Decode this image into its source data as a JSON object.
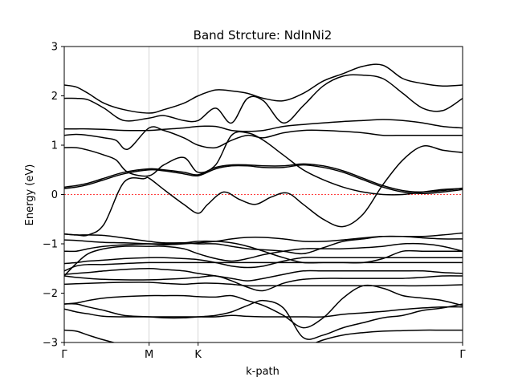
{
  "chart_data": {
    "type": "line",
    "title": "Band Strcture: NdInNi2",
    "xlabel": "k-path",
    "ylabel": "Energy (eV)",
    "ylim": [
      -3,
      3
    ],
    "yticks": [
      3,
      2,
      1,
      0,
      -1,
      -2,
      -3
    ],
    "high_symmetry_points": [
      {
        "label": "Γ",
        "k": 0.0
      },
      {
        "label": "M",
        "k": 0.213
      },
      {
        "label": "K",
        "k": 0.336
      },
      {
        "label": "Γ",
        "k": 1.0
      }
    ],
    "fermi_level": 0,
    "grid": false,
    "series": [
      {
        "x": [
          0,
          0.03,
          0.06,
          0.1,
          0.15,
          0.213,
          0.25,
          0.3,
          0.336,
          0.38,
          0.42,
          0.46,
          0.5,
          0.55,
          0.6,
          0.65,
          0.7,
          0.75,
          0.8,
          0.85,
          0.9,
          0.95,
          1.0
        ],
        "y": [
          -2.75,
          -2.77,
          -2.85,
          -2.95,
          -3.05,
          -3.15,
          -3.2,
          -3.2,
          -3.1,
          -3.05,
          -3.05,
          -3.1,
          -3.15,
          -3.2,
          -3.1,
          -2.95,
          -2.85,
          -2.8,
          -2.77,
          -2.76,
          -2.75,
          -2.75,
          -2.75
        ]
      },
      {
        "x": [
          0,
          0.03,
          0.06,
          0.1,
          0.15,
          0.213,
          0.25,
          0.3,
          0.336,
          0.38,
          0.42,
          0.46,
          0.5,
          0.55,
          0.6,
          0.65,
          0.7,
          0.75,
          0.8,
          0.85,
          0.9,
          0.95,
          1.0
        ],
        "y": [
          -2.32,
          -2.38,
          -2.42,
          -2.47,
          -2.48,
          -2.48,
          -2.48,
          -2.48,
          -2.48,
          -2.48,
          -2.45,
          -2.47,
          -2.48,
          -2.48,
          -2.48,
          -2.48,
          -2.43,
          -2.4,
          -2.37,
          -2.33,
          -2.3,
          -2.28,
          -2.28
        ]
      },
      {
        "x": [
          0,
          0.03,
          0.06,
          0.1,
          0.15,
          0.213,
          0.25,
          0.3,
          0.336,
          0.38,
          0.42,
          0.46,
          0.5,
          0.55,
          0.6,
          0.65,
          0.7,
          0.75,
          0.8,
          0.85,
          0.9,
          0.95,
          1.0
        ],
        "y": [
          -2.22,
          -2.22,
          -2.28,
          -2.35,
          -2.45,
          -2.48,
          -2.5,
          -2.5,
          -2.48,
          -2.45,
          -2.38,
          -2.25,
          -2.15,
          -2.3,
          -2.9,
          -2.85,
          -2.7,
          -2.6,
          -2.5,
          -2.45,
          -2.35,
          -2.3,
          -2.22
        ]
      },
      {
        "x": [
          0,
          0.03,
          0.06,
          0.1,
          0.15,
          0.213,
          0.25,
          0.3,
          0.336,
          0.38,
          0.42,
          0.46,
          0.5,
          0.55,
          0.6,
          0.65,
          0.7,
          0.75,
          0.8,
          0.85,
          0.9,
          0.95,
          1.0
        ],
        "y": [
          -2.22,
          -2.2,
          -2.15,
          -2.1,
          -2.07,
          -2.05,
          -2.05,
          -2.05,
          -2.07,
          -2.08,
          -2.05,
          -2.15,
          -2.25,
          -2.45,
          -2.7,
          -2.5,
          -2.1,
          -1.85,
          -1.9,
          -2.05,
          -2.1,
          -2.15,
          -2.25
        ]
      },
      {
        "x": [
          0,
          0.03,
          0.06,
          0.1,
          0.15,
          0.213,
          0.25,
          0.3,
          0.336,
          0.38,
          0.42,
          0.46,
          0.5,
          0.55,
          0.6,
          0.65,
          0.7,
          0.75,
          0.8,
          0.85,
          0.9,
          0.95,
          1.0
        ],
        "y": [
          -1.82,
          -1.81,
          -1.8,
          -1.79,
          -1.78,
          -1.78,
          -1.8,
          -1.82,
          -1.8,
          -1.8,
          -1.82,
          -1.85,
          -1.85,
          -1.85,
          -1.85,
          -1.85,
          -1.85,
          -1.85,
          -1.85,
          -1.85,
          -1.85,
          -1.84,
          -1.83
        ]
      },
      {
        "x": [
          0,
          0.03,
          0.06,
          0.1,
          0.15,
          0.213,
          0.25,
          0.3,
          0.336,
          0.38,
          0.42,
          0.46,
          0.5,
          0.55,
          0.6,
          0.65,
          0.7,
          0.75,
          0.8,
          0.85,
          0.9,
          0.95,
          1.0
        ],
        "y": [
          -1.65,
          -1.68,
          -1.7,
          -1.72,
          -1.73,
          -1.73,
          -1.72,
          -1.7,
          -1.68,
          -1.65,
          -1.75,
          -1.88,
          -1.95,
          -1.8,
          -1.72,
          -1.7,
          -1.7,
          -1.7,
          -1.7,
          -1.7,
          -1.68,
          -1.65,
          -1.65
        ]
      },
      {
        "x": [
          0,
          0.03,
          0.06,
          0.1,
          0.15,
          0.213,
          0.25,
          0.3,
          0.336,
          0.38,
          0.42,
          0.46,
          0.5,
          0.55,
          0.6,
          0.65,
          0.7,
          0.75,
          0.8,
          0.85,
          0.9,
          0.95,
          1.0
        ],
        "y": [
          -1.62,
          -1.6,
          -1.58,
          -1.55,
          -1.52,
          -1.5,
          -1.52,
          -1.55,
          -1.6,
          -1.65,
          -1.7,
          -1.75,
          -1.7,
          -1.62,
          -1.55,
          -1.55,
          -1.55,
          -1.55,
          -1.55,
          -1.55,
          -1.55,
          -1.58,
          -1.6
        ]
      },
      {
        "x": [
          0,
          0.03,
          0.06,
          0.1,
          0.15,
          0.213,
          0.25,
          0.3,
          0.336,
          0.38,
          0.42,
          0.46,
          0.5,
          0.55,
          0.6,
          0.65,
          0.7,
          0.75,
          0.8,
          0.85,
          0.9,
          0.95,
          1.0
        ],
        "y": [
          -1.55,
          -1.45,
          -1.42,
          -1.42,
          -1.4,
          -1.38,
          -1.38,
          -1.38,
          -1.38,
          -1.38,
          -1.38,
          -1.38,
          -1.38,
          -1.38,
          -1.38,
          -1.38,
          -1.38,
          -1.38,
          -1.38,
          -1.38,
          -1.38,
          -1.38,
          -1.38
        ]
      },
      {
        "x": [
          0,
          0.03,
          0.06,
          0.1,
          0.15,
          0.213,
          0.25,
          0.3,
          0.336,
          0.38,
          0.42,
          0.46,
          0.5,
          0.55,
          0.6,
          0.65,
          0.7,
          0.75,
          0.8,
          0.85,
          0.9,
          0.95,
          1.0
        ],
        "y": [
          -1.4,
          -1.38,
          -1.35,
          -1.33,
          -1.3,
          -1.28,
          -1.28,
          -1.3,
          -1.32,
          -1.38,
          -1.45,
          -1.48,
          -1.45,
          -1.35,
          -1.28,
          -1.28,
          -1.28,
          -1.28,
          -1.28,
          -1.28,
          -1.28,
          -1.28,
          -1.28
        ]
      },
      {
        "x": [
          0,
          0.03,
          0.06,
          0.1,
          0.15,
          0.213,
          0.25,
          0.3,
          0.336,
          0.38,
          0.42,
          0.46,
          0.5,
          0.55,
          0.6,
          0.65,
          0.7,
          0.75,
          0.8,
          0.85,
          0.9,
          0.95,
          1.0
        ],
        "y": [
          -1.65,
          -1.4,
          -1.2,
          -1.1,
          -1.05,
          -1.05,
          -1.05,
          -1.1,
          -1.2,
          -1.3,
          -1.35,
          -1.3,
          -1.22,
          -1.15,
          -1.1,
          -1.1,
          -1.1,
          -1.08,
          -1.05,
          -1.0,
          -1.0,
          -1.05,
          -1.15
        ]
      },
      {
        "x": [
          0,
          0.03,
          0.06,
          0.1,
          0.15,
          0.213,
          0.25,
          0.3,
          0.336,
          0.38,
          0.42,
          0.46,
          0.5,
          0.55,
          0.6,
          0.65,
          0.7,
          0.75,
          0.8,
          0.85,
          0.9,
          0.95,
          1.0
        ],
        "y": [
          -1.15,
          -1.15,
          -1.1,
          -1.05,
          -1.02,
          -1.0,
          -1.0,
          -0.98,
          -0.95,
          -0.95,
          -0.98,
          -1.05,
          -1.15,
          -1.28,
          -1.38,
          -1.38,
          -1.38,
          -1.38,
          -1.3,
          -1.15,
          -1.15,
          -1.15,
          -1.15
        ]
      },
      {
        "x": [
          0,
          0.03,
          0.06,
          0.1,
          0.15,
          0.213,
          0.25,
          0.3,
          0.336,
          0.38,
          0.42,
          0.46,
          0.5,
          0.55,
          0.6,
          0.65,
          0.7,
          0.75,
          0.8,
          0.85,
          0.9,
          0.95,
          1.0
        ],
        "y": [
          -0.92,
          -0.93,
          -0.95,
          -0.97,
          -0.98,
          -1.0,
          -1.02,
          -1.0,
          -0.98,
          -0.95,
          -0.9,
          -0.87,
          -0.87,
          -0.9,
          -0.95,
          -0.95,
          -0.92,
          -0.88,
          -0.85,
          -0.85,
          -0.88,
          -0.9,
          -0.9
        ]
      },
      {
        "x": [
          0,
          0.03,
          0.06,
          0.1,
          0.15,
          0.213,
          0.25,
          0.3,
          0.336,
          0.38,
          0.42,
          0.46,
          0.5,
          0.55,
          0.6,
          0.65,
          0.7,
          0.75,
          0.8,
          0.85,
          0.9,
          0.95,
          1.0
        ],
        "y": [
          -0.8,
          -0.82,
          -0.82,
          -0.83,
          -0.88,
          -0.95,
          -0.98,
          -0.98,
          -1.0,
          -1.0,
          -1.05,
          -1.1,
          -1.12,
          -1.15,
          -1.2,
          -1.08,
          -0.95,
          -0.9,
          -0.85,
          -0.85,
          -0.85,
          -0.82,
          -0.78
        ]
      },
      {
        "x": [
          0,
          0.03,
          0.06,
          0.1,
          0.15,
          0.2,
          0.213,
          0.25,
          0.3,
          0.336,
          0.36,
          0.4,
          0.44,
          0.48,
          0.52,
          0.56,
          0.6,
          0.65,
          0.7,
          0.75,
          0.8,
          0.85,
          0.9,
          0.95,
          1.0
        ],
        "y": [
          -0.8,
          -0.82,
          -0.82,
          -0.6,
          0.25,
          0.32,
          0.33,
          0.1,
          -0.2,
          -0.38,
          -0.2,
          0.05,
          -0.1,
          -0.2,
          -0.05,
          0.03,
          -0.2,
          -0.5,
          -0.65,
          -0.4,
          0.2,
          0.7,
          0.98,
          0.9,
          0.85
        ]
      },
      {
        "x": [
          0,
          0.03,
          0.06,
          0.1,
          0.15,
          0.213,
          0.25,
          0.3,
          0.336,
          0.38,
          0.42,
          0.46,
          0.5,
          0.55,
          0.6,
          0.65,
          0.7,
          0.75,
          0.8,
          0.85,
          0.9,
          0.95,
          1.0
        ],
        "y": [
          0.12,
          0.15,
          0.2,
          0.3,
          0.42,
          0.5,
          0.48,
          0.42,
          0.38,
          0.52,
          0.58,
          0.58,
          0.55,
          0.55,
          0.6,
          0.55,
          0.45,
          0.3,
          0.15,
          0.05,
          0.02,
          0.05,
          0.1
        ]
      },
      {
        "x": [
          0,
          0.03,
          0.06,
          0.1,
          0.15,
          0.213,
          0.25,
          0.3,
          0.336,
          0.38,
          0.42,
          0.46,
          0.5,
          0.55,
          0.6,
          0.65,
          0.7,
          0.75,
          0.8,
          0.85,
          0.9,
          0.95,
          1.0
        ],
        "y": [
          0.15,
          0.18,
          0.23,
          0.33,
          0.45,
          0.52,
          0.5,
          0.45,
          0.4,
          0.55,
          0.6,
          0.6,
          0.58,
          0.58,
          0.62,
          0.58,
          0.48,
          0.33,
          0.18,
          0.08,
          0.05,
          0.08,
          0.13
        ]
      },
      {
        "x": [
          0,
          0.03,
          0.06,
          0.1,
          0.13,
          0.16,
          0.213,
          0.25,
          0.3,
          0.336,
          0.38,
          0.42,
          0.46,
          0.5,
          0.55,
          0.6,
          0.65,
          0.7,
          0.75,
          0.8,
          0.85,
          0.9,
          0.95,
          1.0
        ],
        "y": [
          0.95,
          0.95,
          0.9,
          0.8,
          0.7,
          0.45,
          0.38,
          0.6,
          0.75,
          0.45,
          0.6,
          1.2,
          1.25,
          1.1,
          0.8,
          0.5,
          0.3,
          0.15,
          0.05,
          0.0,
          0.0,
          0.05,
          0.1,
          0.12
        ]
      },
      {
        "x": [
          0,
          0.03,
          0.06,
          0.1,
          0.13,
          0.16,
          0.213,
          0.25,
          0.3,
          0.336,
          0.38,
          0.42,
          0.46,
          0.5,
          0.55,
          0.6,
          0.65,
          0.7,
          0.75,
          0.8,
          0.85,
          0.9,
          0.95,
          1.0
        ],
        "y": [
          1.2,
          1.22,
          1.2,
          1.15,
          1.1,
          0.92,
          1.35,
          1.3,
          1.15,
          1.0,
          0.95,
          1.1,
          1.2,
          1.15,
          1.25,
          1.3,
          1.3,
          1.28,
          1.25,
          1.2,
          1.2,
          1.2,
          1.2,
          1.2
        ]
      },
      {
        "x": [
          0,
          0.03,
          0.06,
          0.1,
          0.15,
          0.213,
          0.25,
          0.3,
          0.336,
          0.38,
          0.42,
          0.46,
          0.5,
          0.55,
          0.6,
          0.65,
          0.7,
          0.75,
          0.8,
          0.85,
          0.9,
          0.95,
          1.0
        ],
        "y": [
          1.33,
          1.33,
          1.33,
          1.32,
          1.3,
          1.3,
          1.32,
          1.35,
          1.38,
          1.38,
          1.3,
          1.28,
          1.3,
          1.38,
          1.42,
          1.45,
          1.48,
          1.5,
          1.52,
          1.5,
          1.45,
          1.38,
          1.35
        ]
      },
      {
        "x": [
          0,
          0.03,
          0.06,
          0.1,
          0.15,
          0.213,
          0.25,
          0.3,
          0.336,
          0.38,
          0.42,
          0.46,
          0.5,
          0.55,
          0.6,
          0.65,
          0.7,
          0.75,
          0.8,
          0.85,
          0.9,
          0.95,
          1.0
        ],
        "y": [
          1.95,
          1.95,
          1.92,
          1.75,
          1.5,
          1.55,
          1.6,
          1.5,
          1.5,
          1.75,
          1.45,
          1.95,
          1.9,
          1.45,
          1.8,
          2.2,
          2.4,
          2.42,
          2.35,
          2.05,
          1.75,
          1.7,
          1.95
        ]
      },
      {
        "x": [
          0,
          0.03,
          0.06,
          0.1,
          0.15,
          0.213,
          0.25,
          0.3,
          0.336,
          0.38,
          0.42,
          0.46,
          0.5,
          0.55,
          0.6,
          0.65,
          0.7,
          0.75,
          0.8,
          0.85,
          0.9,
          0.95,
          1.0
        ],
        "y": [
          2.22,
          2.18,
          2.05,
          1.85,
          1.72,
          1.65,
          1.72,
          1.85,
          2.0,
          2.12,
          2.1,
          2.05,
          1.95,
          1.9,
          2.05,
          2.3,
          2.45,
          2.6,
          2.62,
          2.35,
          2.25,
          2.2,
          2.22
        ]
      }
    ]
  }
}
